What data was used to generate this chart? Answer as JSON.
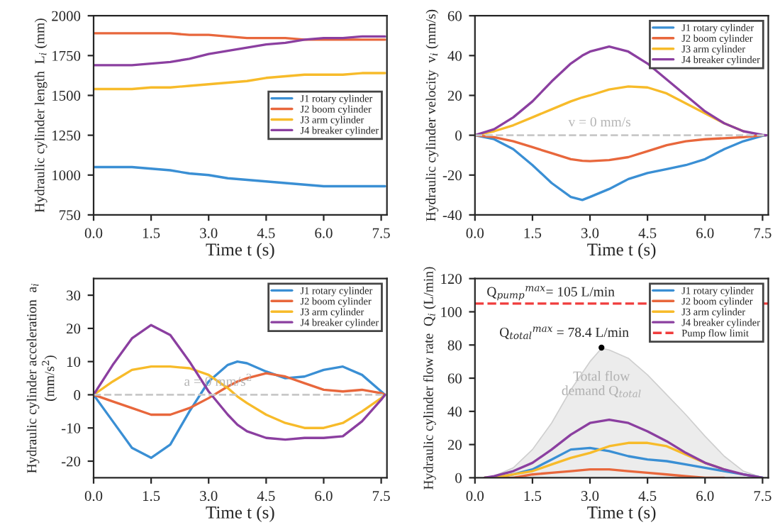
{
  "chart_data": [
    {
      "type": "line",
      "xlabel": "Time t (s)",
      "ylabel": "Hydraulic cylinder length  L$_{i}$ (mm)",
      "x": [
        0,
        0.5,
        1,
        1.5,
        2,
        2.5,
        3,
        3.5,
        4,
        4.5,
        5,
        5.5,
        6,
        6.5,
        7,
        7.6
      ],
      "series": [
        {
          "name": "J1 rotary cylinder",
          "color": "#3a8fd4",
          "values": [
            1050,
            1050,
            1050,
            1040,
            1030,
            1010,
            1000,
            980,
            970,
            960,
            950,
            940,
            930,
            930,
            930,
            930
          ]
        },
        {
          "name": "J2 boom cylinder",
          "color": "#e8673c",
          "values": [
            1890,
            1890,
            1890,
            1890,
            1890,
            1880,
            1880,
            1870,
            1860,
            1860,
            1860,
            1850,
            1850,
            1850,
            1850,
            1850
          ]
        },
        {
          "name": "J3 arm cylinder",
          "color": "#f7bb2a",
          "values": [
            1540,
            1540,
            1540,
            1550,
            1550,
            1560,
            1570,
            1580,
            1590,
            1610,
            1620,
            1630,
            1630,
            1630,
            1640,
            1640
          ]
        },
        {
          "name": "J4 breaker cylinder",
          "color": "#8b3fa0",
          "values": [
            1690,
            1690,
            1690,
            1700,
            1710,
            1730,
            1760,
            1780,
            1800,
            1820,
            1830,
            1850,
            1860,
            1860,
            1870,
            1870
          ]
        }
      ],
      "xlim": [
        0,
        7.65
      ],
      "xticks": [
        {
          "value": 0,
          "label": "0.0"
        },
        {
          "value": 1.5,
          "label": "1.5"
        },
        {
          "value": 3,
          "label": "3.0"
        },
        {
          "value": 4.5,
          "label": "4.5"
        },
        {
          "value": 6,
          "label": "6.0"
        },
        {
          "value": 7.5,
          "label": "7.5"
        }
      ],
      "ylim": [
        750,
        2000
      ],
      "yticks": [
        750,
        1000,
        1250,
        1500,
        1750,
        2000
      ],
      "legend": "right"
    },
    {
      "type": "line",
      "xlabel": "Time t (s)",
      "ylabel": "Hydraulic cylinder velocity  v$_{i}$ (mm/s)",
      "x": [
        0,
        0.5,
        1,
        1.5,
        2,
        2.5,
        2.8,
        3,
        3.5,
        4,
        4.5,
        5,
        5.5,
        6,
        6.5,
        7,
        7.5,
        7.6
      ],
      "series": [
        {
          "name": "J1 rotary cylinder",
          "color": "#3a8fd4",
          "values": [
            0,
            -2,
            -7,
            -15,
            -24,
            -31,
            -32.5,
            -31,
            -27,
            -22,
            -19,
            -17,
            -15,
            -12,
            -7,
            -3,
            -0.3,
            0
          ]
        },
        {
          "name": "J2 boom cylinder",
          "color": "#e8673c",
          "values": [
            0,
            -1,
            -3,
            -6,
            -9,
            -12,
            -12.8,
            -13,
            -12.5,
            -11,
            -8,
            -5,
            -3,
            -2,
            -1.5,
            -1,
            0,
            0
          ]
        },
        {
          "name": "J3 arm cylinder",
          "color": "#f7bb2a",
          "values": [
            0,
            2,
            5,
            9,
            13,
            17,
            19,
            20,
            23,
            24.5,
            24,
            21,
            16,
            11,
            6,
            2,
            null,
            null
          ]
        },
        {
          "name": "J4 breaker cylinder",
          "color": "#8b3fa0",
          "values": [
            0,
            3,
            9,
            17,
            27,
            36,
            40,
            42,
            44.5,
            42,
            36,
            28,
            20,
            12,
            6,
            2,
            0.2,
            0
          ]
        }
      ],
      "ref_lines": [
        {
          "axis": "y",
          "value": 0,
          "label": "v = 0 mm/s",
          "color": "#c8c8c8",
          "line_style": "dashed"
        }
      ],
      "xlim": [
        0,
        7.65
      ],
      "xticks": [
        {
          "value": 0,
          "label": "0.0"
        },
        {
          "value": 1.5,
          "label": "1.5"
        },
        {
          "value": 3,
          "label": "3.0"
        },
        {
          "value": 4.5,
          "label": "4.5"
        },
        {
          "value": 6,
          "label": "6.0"
        },
        {
          "value": 7.5,
          "label": "7.5"
        }
      ],
      "ylim": [
        -40,
        60
      ],
      "yticks": [
        -40,
        -20,
        0,
        20,
        40,
        60
      ],
      "legend": "top right"
    },
    {
      "type": "line",
      "xlabel": "Time t (s)",
      "ylabel": "Hydraulic cylinder acceleration  a$_{i}$\n(mm/s$^{2}$)",
      "x": [
        0,
        0.5,
        1,
        1.5,
        2,
        2.5,
        3,
        3.5,
        3.75,
        4,
        4.5,
        5,
        5.5,
        6,
        6.5,
        7,
        7.5,
        7.6
      ],
      "series": [
        {
          "name": "J1 rotary cylinder",
          "color": "#3a8fd4",
          "values": [
            0,
            -8,
            -16,
            -19,
            -15,
            -5,
            4,
            9,
            10,
            9.5,
            7,
            5,
            5.5,
            7.5,
            8.5,
            6,
            1,
            0
          ]
        },
        {
          "name": "J2 boom cylinder",
          "color": "#e8673c",
          "values": [
            0,
            -2,
            -4,
            -6,
            -6,
            -4,
            -1,
            2.5,
            4,
            5,
            6.5,
            5.5,
            3.5,
            1.5,
            1,
            1.5,
            0.5,
            0
          ]
        },
        {
          "name": "J3 arm cylinder",
          "color": "#f7bb2a",
          "values": [
            0,
            4,
            7.5,
            8.5,
            8.5,
            8,
            6,
            2,
            -0.5,
            -2.5,
            -6,
            -8.5,
            -10,
            -10,
            -8.5,
            -5,
            -1,
            0
          ]
        },
        {
          "name": "J4 breaker cylinder",
          "color": "#8b3fa0",
          "values": [
            0,
            9,
            17,
            21,
            18,
            10,
            1,
            -6,
            -9,
            -11,
            -13,
            -13.5,
            -13,
            -13,
            -12.5,
            -8,
            -1.5,
            0
          ]
        }
      ],
      "ref_lines": [
        {
          "axis": "y",
          "value": 0,
          "label": "a = 0 mm/s$^{2}$",
          "color": "#c8c8c8",
          "line_style": "dashed"
        }
      ],
      "xlim": [
        0,
        7.65
      ],
      "xticks": [
        {
          "value": 0,
          "label": "0.0"
        },
        {
          "value": 1.5,
          "label": "1.5"
        },
        {
          "value": 3,
          "label": "3.0"
        },
        {
          "value": 4.5,
          "label": "4.5"
        },
        {
          "value": 6,
          "label": "6.0"
        },
        {
          "value": 7.5,
          "label": "7.5"
        }
      ],
      "ylim": [
        -25,
        35
      ],
      "yticks": [
        -20,
        -10,
        0,
        10,
        20,
        30
      ],
      "legend": "top right"
    },
    {
      "type": "line",
      "xlabel": "Time t (s)",
      "ylabel": "Hydraulic cylinder flow rate  Q$_{i}$ (L/min)",
      "x": [
        0.25,
        0.5,
        1,
        1.5,
        2,
        2.5,
        3,
        3.5,
        4,
        4.5,
        5,
        5.5,
        6,
        6.5,
        7,
        7.5
      ],
      "series": [
        {
          "type": "area",
          "name": "Total flow\ndemand Q$_{total}$",
          "color": "#ececec",
          "x": [
            0.25,
            0.5,
            1,
            1.5,
            2,
            2.5,
            3,
            3.3,
            3.5,
            4,
            4.5,
            5,
            5.5,
            6,
            6.5,
            7,
            7.5
          ],
          "values": [
            0,
            1,
            6,
            17,
            33,
            53,
            70,
            78,
            77,
            72,
            62,
            50,
            38,
            25,
            13,
            4,
            0
          ]
        },
        {
          "name": "J1 rotary cylinder",
          "color": "#3a8fd4",
          "values": [
            0,
            0,
            2,
            5,
            11,
            17,
            18,
            16,
            13,
            11,
            10,
            8,
            6,
            4,
            2,
            0
          ]
        },
        {
          "name": "J2 boom cylinder",
          "color": "#e8673c",
          "values": [
            0,
            0,
            0,
            2,
            3,
            4,
            5,
            5,
            4,
            3,
            2,
            1,
            0,
            0,
            null,
            null
          ]
        },
        {
          "name": "J3 arm cylinder",
          "color": "#f7bb2a",
          "values": [
            0,
            0,
            2,
            4,
            8,
            12,
            15,
            19,
            21,
            21,
            19,
            14,
            9,
            5,
            null,
            null
          ]
        },
        {
          "name": "J4 breaker cylinder",
          "color": "#8b3fa0",
          "values": [
            0,
            1,
            4,
            9,
            17,
            26,
            33,
            35,
            33,
            28,
            22,
            15,
            9,
            5,
            2,
            0
          ]
        },
        {
          "name": "Pump flow limit",
          "color": "#f03c3c",
          "line_style": "dashed",
          "x": [
            0,
            7.65
          ],
          "values": [
            105,
            105
          ]
        }
      ],
      "annotations": [
        {
          "text": "Q$_{total}$$^{max}$ = 78.4 L/min",
          "x": 3.3,
          "y": 78.4
        },
        "Q$_{pump}$$^{max}$= 105 L/min"
      ],
      "xlim": [
        0,
        7.65
      ],
      "xticks": [
        {
          "value": 0,
          "label": "0.0"
        },
        {
          "value": 1.5,
          "label": "1.5"
        },
        {
          "value": 3,
          "label": "3.0"
        },
        {
          "value": 4.5,
          "label": "4.5"
        },
        {
          "value": 6,
          "label": "6.0"
        },
        {
          "value": 7.5,
          "label": "7.5"
        }
      ],
      "ylim": [
        0,
        120
      ],
      "yticks": [
        0,
        20,
        40,
        60,
        80,
        100,
        120
      ],
      "legend": "top right"
    }
  ]
}
